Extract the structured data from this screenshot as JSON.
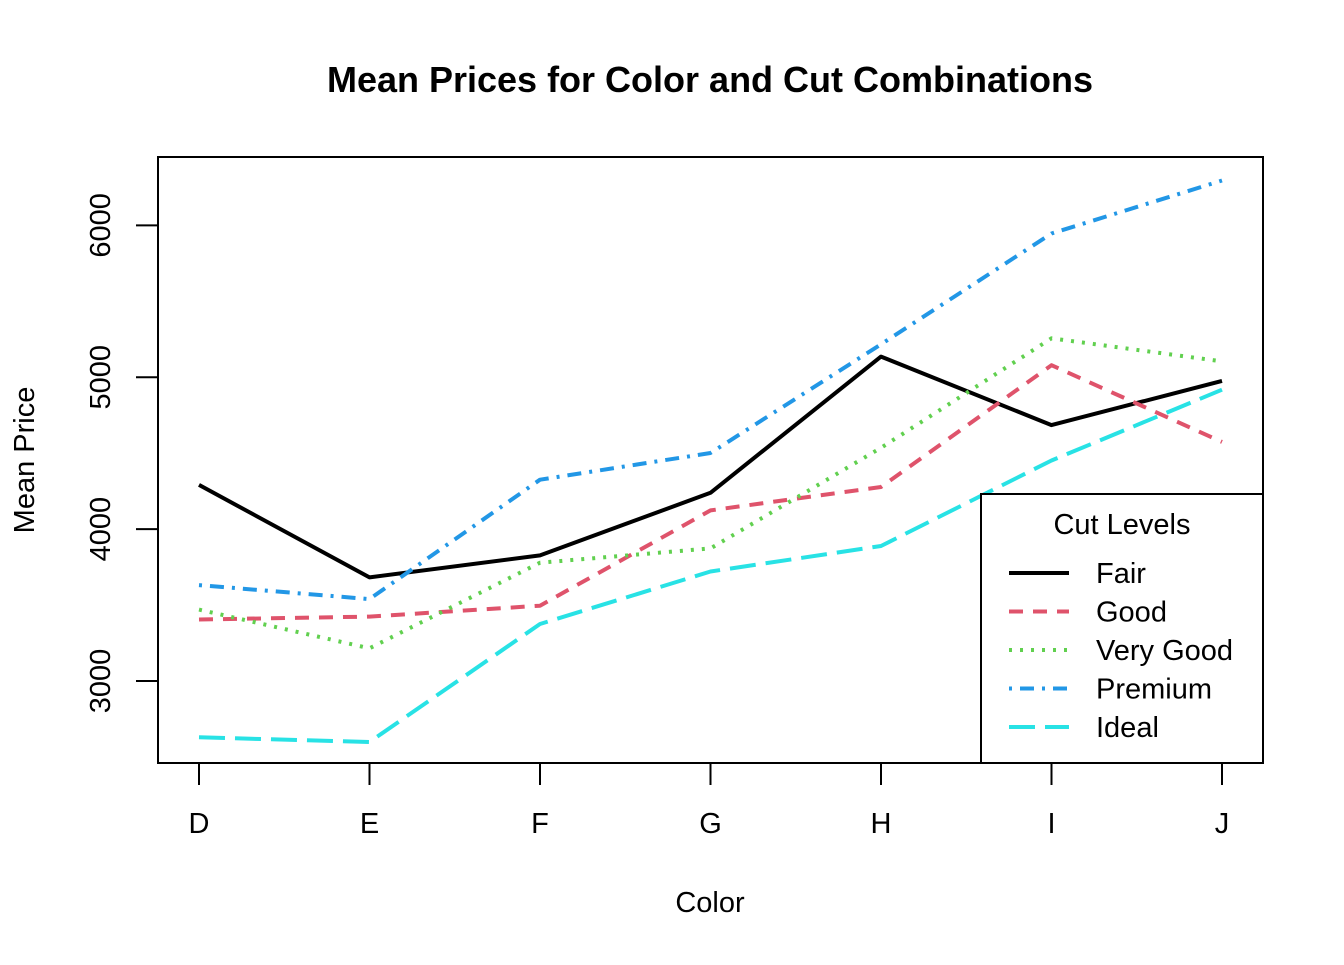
{
  "chart_data": {
    "type": "line",
    "title": "Mean Prices for Color and Cut Combinations",
    "xlabel": "Color",
    "ylabel": "Mean Price",
    "categories": [
      "D",
      "E",
      "F",
      "G",
      "H",
      "I",
      "J"
    ],
    "yticks": [
      3000,
      4000,
      5000,
      6000
    ],
    "ylim": [
      2460,
      6450
    ],
    "grid": false,
    "legend": {
      "title": "Cut Levels",
      "placement": "bottom-right"
    },
    "series": [
      {
        "name": "Fair",
        "color": "#000000",
        "line_style": "solid",
        "values": [
          4291,
          3682,
          3827,
          4239,
          5136,
          4685,
          4976
        ]
      },
      {
        "name": "Good",
        "color": "#DF536B",
        "line_style": "dashed",
        "values": [
          3405,
          3424,
          3496,
          4123,
          4277,
          5079,
          4574
        ]
      },
      {
        "name": "Very Good",
        "color": "#61D04F",
        "line_style": "dotted",
        "values": [
          3470,
          3215,
          3779,
          3873,
          4535,
          5256,
          5104
        ]
      },
      {
        "name": "Premium",
        "color": "#2297E6",
        "line_style": "dotdash",
        "values": [
          3631,
          3539,
          4325,
          4501,
          5217,
          5946,
          6295
        ]
      },
      {
        "name": "Ideal",
        "color": "#28E2E5",
        "line_style": "longdash",
        "values": [
          2629,
          2598,
          3375,
          3721,
          3889,
          4452,
          4918
        ]
      }
    ]
  }
}
